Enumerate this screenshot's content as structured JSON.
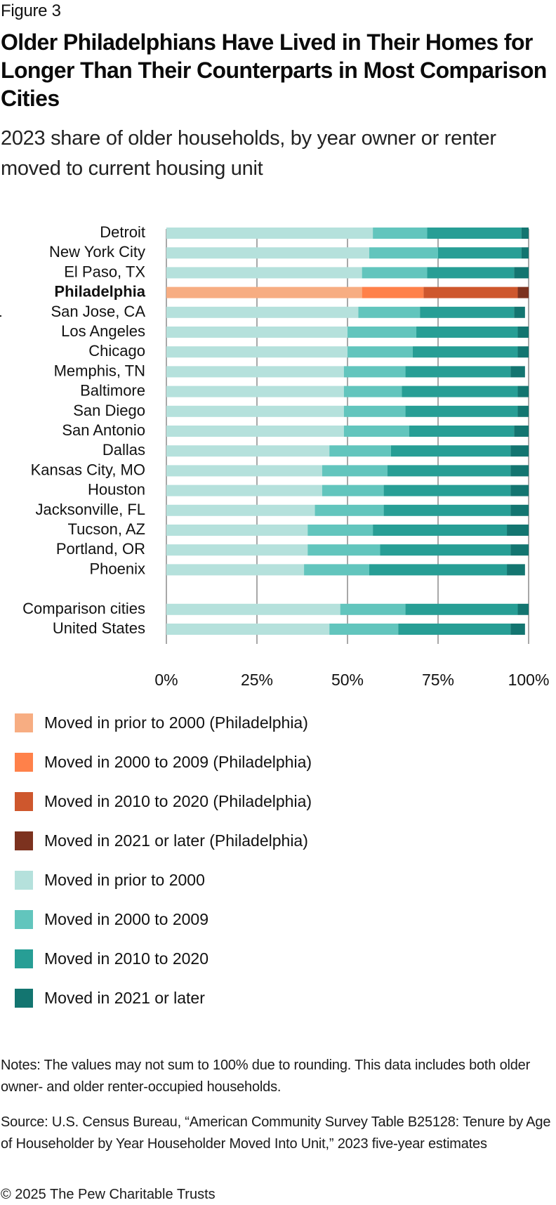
{
  "figure_label": "Figure 3",
  "title": "Older Philadelphians Have Lived in Their Homes for Longer Than Their Counterparts in Most Comparison Cities",
  "subtitle": "2023 share of older households, by year owner or renter moved to current housing unit",
  "notes": "Notes: The values may not sum to 100% due to rounding. This data includes both older owner- and older renter-occupied households.",
  "source": "Source: U.S. Census Bureau, “American Community Survey Table B25128: Tenure by Age of Householder by Year Householder Moved Into Unit,” 2023 five-year estimates",
  "copyright": "© 2025 The Pew Charitable Trusts",
  "legend": [
    {
      "label": "Moved in prior to 2000 (Philadelphia)",
      "color": "#F7AD82"
    },
    {
      "label": "Moved in 2000 to 2009 (Philadelphia)",
      "color": "#FF814A"
    },
    {
      "label": "Moved in 2010 to 2020 (Philadelphia)",
      "color": "#CE572D"
    },
    {
      "label": "Moved in 2021 or later (Philadelphia)",
      "color": "#7C321F"
    },
    {
      "label": "Moved in prior to 2000",
      "color": "#B5E1DC"
    },
    {
      "label": "Moved in 2000 to 2009",
      "color": "#62C5BD"
    },
    {
      "label": "Moved in 2010 to 2020",
      "color": "#279E95"
    },
    {
      "label": "Moved in 2021 or later",
      "color": "#137570"
    }
  ],
  "chart_data": {
    "type": "bar",
    "orientation": "horizontal",
    "stacked": true,
    "title": "Older Philadelphians Have Lived in Their Homes for Longer Than Their Counterparts in Most Comparison Cities",
    "subtitle": "2023 share of older households, by year owner or renter moved to current housing unit",
    "xlabel": "",
    "ylabel": "",
    "xlim": [
      0,
      100
    ],
    "x_ticks": [
      "0%",
      "25%",
      "50%",
      "75%",
      "100%"
    ],
    "x_tick_values": [
      0,
      25,
      50,
      75,
      100
    ],
    "grid": true,
    "legend_position": "bottom",
    "highlight_category": "Philadelphia",
    "categories": [
      "Detroit",
      "New York City",
      "El Paso, TX",
      "Philadelphia",
      "San Jose, CA",
      "Los Angeles",
      "Chicago",
      "Memphis, TN",
      "Baltimore",
      "San Diego",
      "San Antonio",
      "Dallas",
      "Kansas City, MO",
      "Houston",
      "Jacksonville, FL",
      "Tucson, AZ",
      "Portland, OR",
      "Phoenix",
      "",
      "Comparison cities",
      "United States"
    ],
    "series": [
      {
        "name": "Moved in prior to 2000",
        "color": "#B5E1DC",
        "highlight_color": "#F7AD82",
        "values": [
          57,
          56,
          54,
          54,
          53,
          50,
          50,
          49,
          49,
          49,
          49,
          45,
          43,
          43,
          41,
          39,
          39,
          38,
          null,
          48,
          45
        ]
      },
      {
        "name": "Moved in 2000 to 2009",
        "color": "#62C5BD",
        "highlight_color": "#FF814A",
        "values": [
          15,
          19,
          18,
          17,
          17,
          19,
          18,
          17,
          16,
          17,
          18,
          17,
          18,
          17,
          19,
          18,
          20,
          18,
          null,
          18,
          19
        ]
      },
      {
        "name": "Moved in 2010 to 2020",
        "color": "#279E95",
        "highlight_color": "#CE572D",
        "values": [
          26,
          23,
          24,
          26,
          26,
          28,
          29,
          29,
          32,
          31,
          29,
          33,
          34,
          35,
          35,
          37,
          36,
          38,
          null,
          31,
          31
        ]
      },
      {
        "name": "Moved in 2021 or later",
        "color": "#137570",
        "highlight_color": "#7C321F",
        "values": [
          2,
          2,
          4,
          3,
          3,
          3,
          3,
          4,
          3,
          3,
          4,
          5,
          5,
          5,
          5,
          6,
          5,
          5,
          null,
          3,
          4
        ]
      }
    ]
  }
}
